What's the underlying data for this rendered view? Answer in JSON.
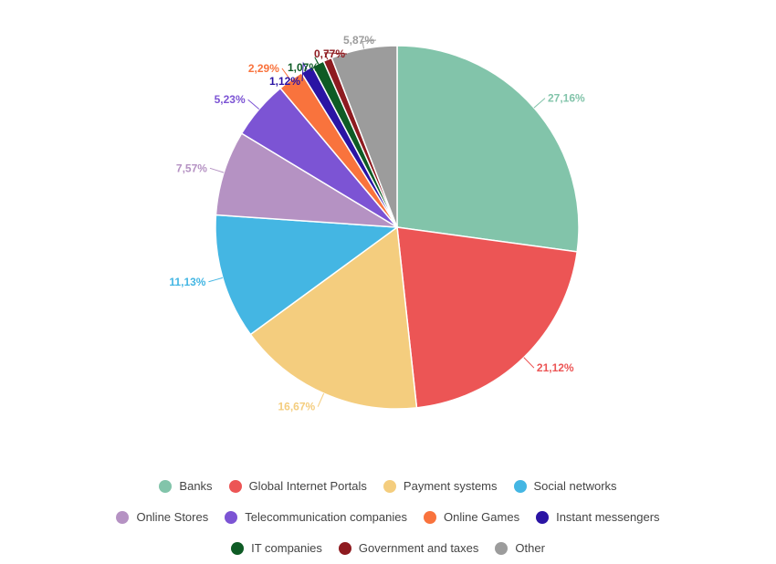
{
  "chart_data": {
    "type": "pie",
    "title": "",
    "series": [
      {
        "name": "Banks",
        "value": 27.16,
        "label": "27,16%",
        "color": "#82C4AA"
      },
      {
        "name": "Global Internet Portals",
        "value": 21.12,
        "label": "21,12%",
        "color": "#EC5555"
      },
      {
        "name": "Payment systems",
        "value": 16.67,
        "label": "16,67%",
        "color": "#F4CD7E"
      },
      {
        "name": "Social networks",
        "value": 11.13,
        "label": "11,13%",
        "color": "#44B6E3"
      },
      {
        "name": "Online Stores",
        "value": 7.57,
        "label": "7,57%",
        "color": "#B592C3"
      },
      {
        "name": "Telecommunication companies",
        "value": 5.23,
        "label": "5,23%",
        "color": "#7C54D4"
      },
      {
        "name": "Online Games",
        "value": 2.29,
        "label": "2,29%",
        "color": "#F9733D"
      },
      {
        "name": "Instant messengers",
        "value": 1.12,
        "label": "1,12%",
        "color": "#2A14A4"
      },
      {
        "name": "IT companies",
        "value": 1.07,
        "label": "1,07%",
        "color": "#0E5B25"
      },
      {
        "name": "Government and taxes",
        "value": 0.77,
        "label": "0,77%",
        "color": "#8E1B20"
      },
      {
        "name": "Other",
        "value": 5.87,
        "label": "5,87%",
        "color": "#9C9C9C"
      }
    ],
    "legend_position": "bottom"
  }
}
